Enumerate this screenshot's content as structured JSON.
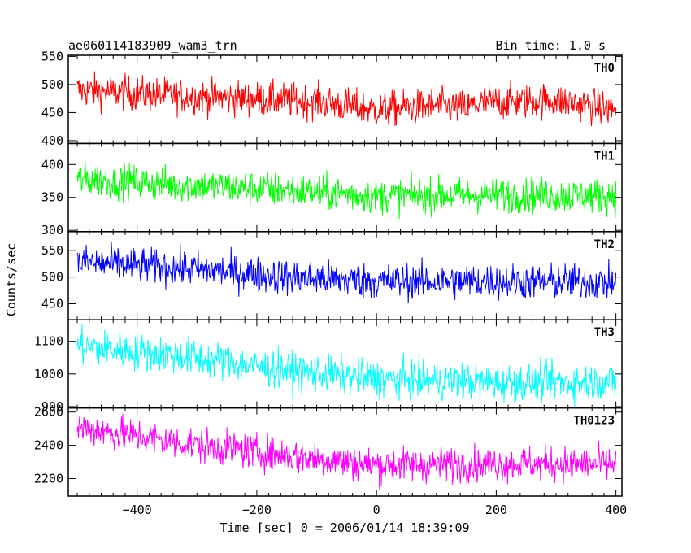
{
  "header": {
    "title": "ae060114183909_wam3_trn",
    "bin_time": "Bin time: 1.0 s"
  },
  "chart_data": {
    "type": "line",
    "shared_x": {
      "label": "Time [sec] 0 = 2006/01/14 18:39:09",
      "range": [
        -515,
        410
      ],
      "ticks": [
        -400,
        -200,
        0,
        200,
        400
      ],
      "tick_labels": [
        "−400",
        "−200",
        "0",
        "200",
        "400"
      ],
      "data_start": -500,
      "data_end": 400,
      "step": 1
    },
    "ylabel": "Counts/sec",
    "panels": [
      {
        "name": "TH0",
        "color": "#ff0000",
        "ylim": [
          395,
          552
        ],
        "yticks": [
          400,
          450,
          500,
          550
        ],
        "trend": [
          [
            -500,
            490
          ],
          [
            -300,
            478
          ],
          [
            -100,
            470
          ],
          [
            0,
            455
          ],
          [
            100,
            462
          ],
          [
            150,
            458
          ],
          [
            180,
            468
          ],
          [
            300,
            472
          ],
          [
            400,
            455
          ]
        ],
        "noise": 28,
        "range_seen": [
          405,
          560
        ]
      },
      {
        "name": "TH1",
        "color": "#00ff00",
        "ylim": [
          298,
          432
        ],
        "yticks": [
          300,
          350,
          400
        ],
        "trend": [
          [
            -500,
            378
          ],
          [
            -300,
            368
          ],
          [
            -100,
            358
          ],
          [
            0,
            352
          ],
          [
            200,
            354
          ],
          [
            400,
            352
          ]
        ],
        "noise": 24,
        "range_seen": [
          296,
          430
        ]
      },
      {
        "name": "TH2",
        "color": "#0000ff",
        "ylim": [
          420,
          585
        ],
        "yticks": [
          450,
          500,
          550
        ],
        "trend": [
          [
            -500,
            528
          ],
          [
            -300,
            515
          ],
          [
            -150,
            500
          ],
          [
            0,
            492
          ],
          [
            200,
            492
          ],
          [
            400,
            490
          ]
        ],
        "noise": 30,
        "range_seen": [
          425,
          590
        ]
      },
      {
        "name": "TH3",
        "color": "#00ffff",
        "ylim": [
          896,
          1166
        ],
        "yticks": [
          900,
          1000,
          1100
        ],
        "trend": [
          [
            -500,
            1085
          ],
          [
            -300,
            1050
          ],
          [
            -150,
            1010
          ],
          [
            0,
            985
          ],
          [
            200,
            975
          ],
          [
            400,
            975
          ]
        ],
        "noise": 52,
        "range_seen": [
          900,
          1160
        ]
      },
      {
        "name": "TH0123",
        "color": "#ff00ff",
        "ylim": [
          2095,
          2625
        ],
        "yticks": [
          2200,
          2400,
          2600
        ],
        "trend": [
          [
            -500,
            2510
          ],
          [
            -300,
            2400
          ],
          [
            -150,
            2340
          ],
          [
            0,
            2280
          ],
          [
            200,
            2290
          ],
          [
            400,
            2285
          ]
        ],
        "noise": 95,
        "range_seen": [
          2100,
          2640
        ]
      }
    ]
  }
}
